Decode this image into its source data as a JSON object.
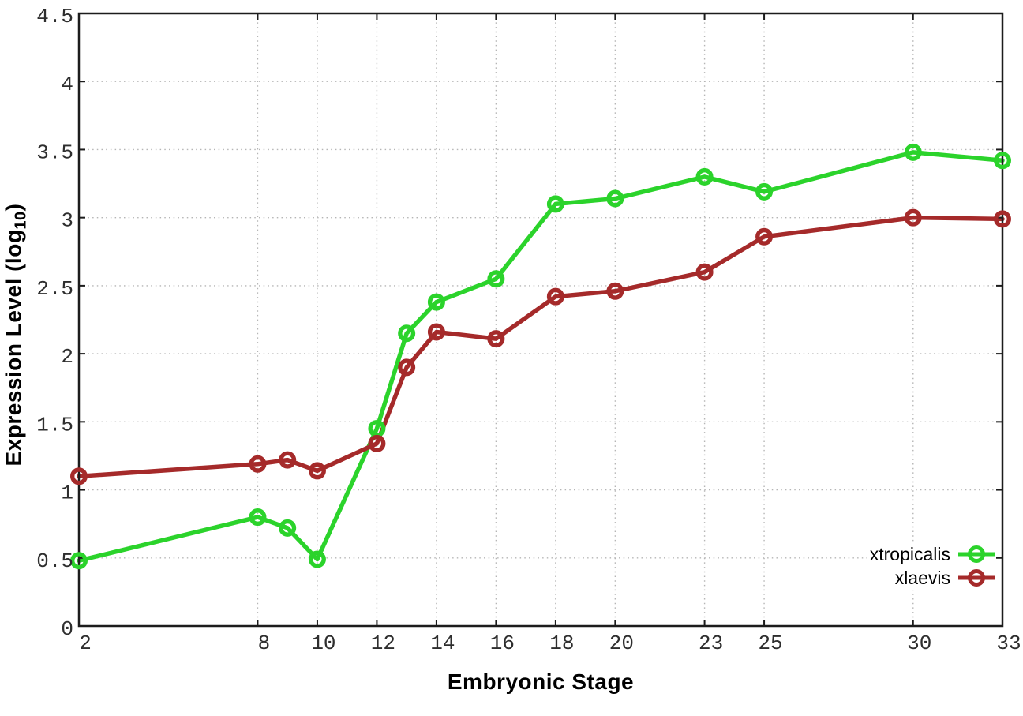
{
  "figure": {
    "xlabel": "Embryonic Stage",
    "ylabel_prefix": "Expression Level (log",
    "ylabel_sub": "10",
    "ylabel_suffix": ")"
  },
  "chart_data": {
    "type": "line",
    "title": "",
    "xlabel": "Embryonic Stage",
    "ylabel": "Expression Level (log10)",
    "xlim": [
      2,
      33
    ],
    "ylim": [
      0,
      4.5
    ],
    "xticks": [
      2,
      8,
      10,
      12,
      14,
      16,
      18,
      20,
      23,
      25,
      30,
      33
    ],
    "yticks": [
      0,
      0.5,
      1,
      1.5,
      2,
      2.5,
      3,
      3.5,
      4,
      4.5
    ],
    "ytick_labels": [
      "0",
      "0.5",
      "1",
      "1.5",
      "2",
      "2.5",
      "3",
      "3.5",
      "4",
      "4.5"
    ],
    "grid": true,
    "grid_style": "dotted",
    "legend_position": "inside-bottom-right",
    "x": [
      2,
      8,
      9,
      10,
      12,
      13,
      14,
      16,
      18,
      20,
      23,
      25,
      30,
      33
    ],
    "series": [
      {
        "name": "xtropicalis",
        "color": "#2bd32b",
        "values": [
          0.48,
          0.8,
          0.72,
          0.49,
          1.45,
          2.15,
          2.38,
          2.55,
          3.1,
          3.14,
          3.3,
          3.19,
          3.48,
          3.42
        ]
      },
      {
        "name": "xlaevis",
        "color": "#a52a2a",
        "values": [
          1.1,
          1.19,
          1.22,
          1.14,
          1.34,
          1.9,
          2.16,
          2.11,
          2.42,
          2.46,
          2.6,
          2.86,
          3.0,
          2.99
        ]
      }
    ]
  },
  "style": {
    "border_color": "#1c1c1c",
    "grid_color": "#b5b5b5",
    "tick_label_color": "#2e2e2e",
    "background": "#ffffff"
  }
}
